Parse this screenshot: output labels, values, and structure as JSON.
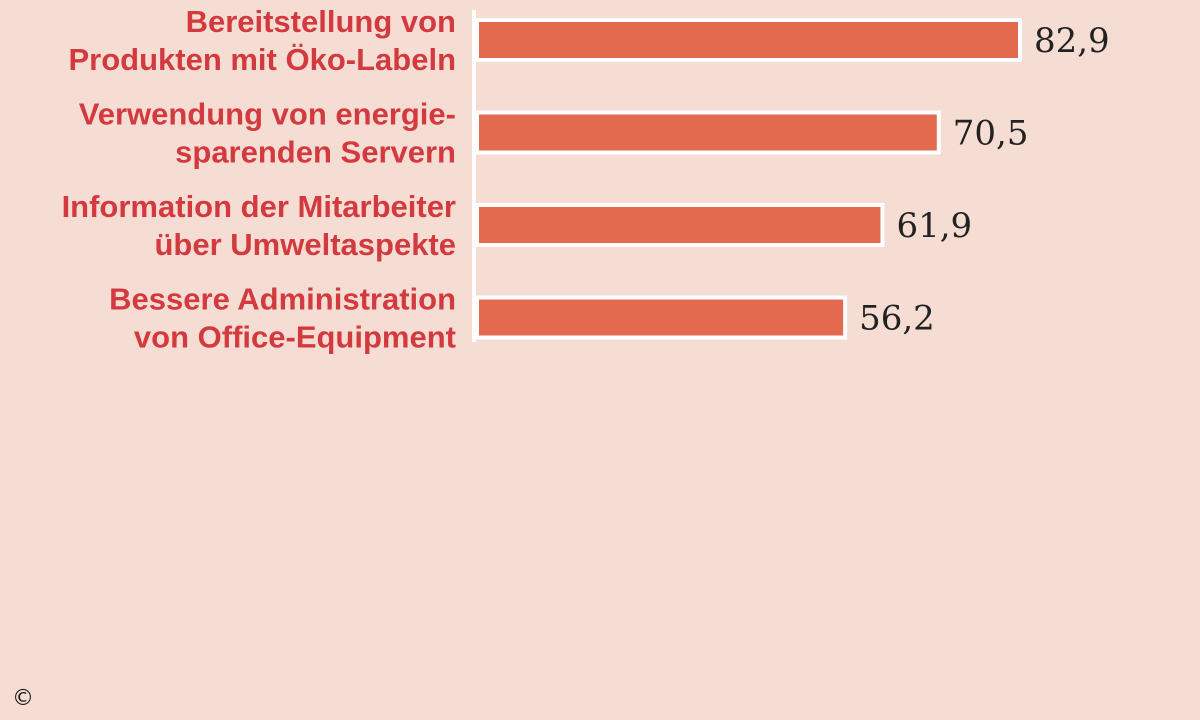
{
  "chart_data": {
    "type": "bar",
    "orientation": "horizontal",
    "categories": [
      [
        "Bereitstellung von",
        "Produkten mit Öko-Labeln"
      ],
      [
        "Verwendung von energie-",
        "sparenden Servern"
      ],
      [
        "Information der Mitarbeiter",
        "über Umweltaspekte"
      ],
      [
        "Bessere Administration",
        "von Office-Equipment"
      ]
    ],
    "values": [
      82.9,
      70.5,
      61.9,
      56.2
    ],
    "value_labels": [
      "82,9",
      "70,5",
      "61,9",
      "56,2"
    ],
    "xlim": [
      0,
      100
    ],
    "grid": false,
    "legend": "none",
    "colors": {
      "background": "#f6ddd3",
      "bar": "#e3694f",
      "bar_outline": "#ffffff",
      "category_text": "#d33a3f",
      "value_text": "#222222"
    }
  },
  "copyright_symbol": "©"
}
